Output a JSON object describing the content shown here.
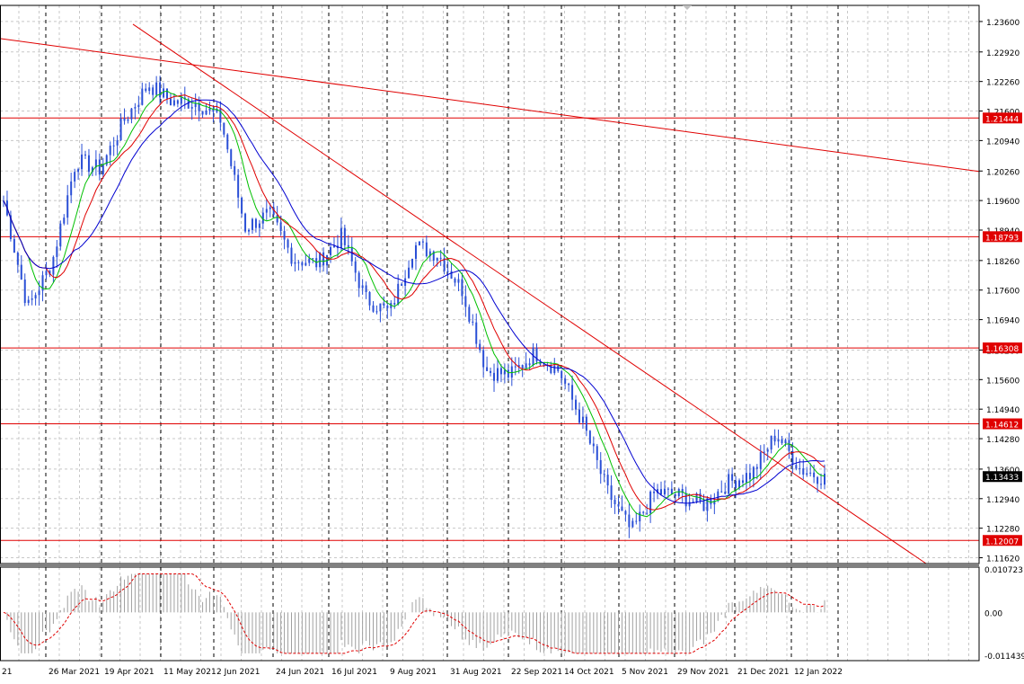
{
  "window": {
    "symbol": "EURUSD",
    "timeframe": "Daily"
  },
  "colors": {
    "background": "#ffffff",
    "grid": "#c8c8c8",
    "candle": "#2a4fd6",
    "ma_fast": "#00c000",
    "ma_mid": "#e00000",
    "ma_slow": "#0000d0",
    "level_line": "#e00000",
    "trend_line": "#e00000",
    "price_tag_bg": "#e00000",
    "current_tag_bg": "#000000",
    "osc_hist": "#a0a0a0",
    "osc_signal": "#e00000"
  },
  "chart_data": [
    {
      "type": "line",
      "name": "main-price",
      "yaxis_ticks": [
        "1.23600",
        "1.22920",
        "1.22260",
        "1.21600",
        "1.20940",
        "1.20260",
        "1.19600",
        "1.18940",
        "1.18260",
        "1.17600",
        "1.16940",
        "1.16260",
        "1.15600",
        "1.14940",
        "1.14280",
        "1.13600",
        "1.12940",
        "1.12280",
        "1.11620"
      ],
      "ylim": [
        1.1149,
        1.2396
      ],
      "xaxis_ticks": [
        "21",
        "26 Mar 2021",
        "19 Apr 2021",
        "11 May 2021",
        "2 Jun 2021",
        "24 Jun 2021",
        "16 Jul 2021",
        "9 Aug 2021",
        "31 Aug 2021",
        "22 Sep 2021",
        "14 Oct 2021",
        "5 Nov 2021",
        "29 Nov 2021",
        "21 Dec 2021",
        "12 Jan 2022"
      ],
      "levels": [
        {
          "value": 1.21444,
          "label": "1.21444"
        },
        {
          "value": 1.18793,
          "label": "1.18793"
        },
        {
          "value": 1.16308,
          "label": "1.16308"
        },
        {
          "value": 1.14612,
          "label": "1.14612"
        },
        {
          "value": 1.12007,
          "label": "1.12007"
        }
      ],
      "current_price": {
        "value": 1.13433,
        "label": "1.13433"
      },
      "trendlines": [
        {
          "from": [
            "Mar 2021",
            1.2322
          ],
          "to": [
            "Feb 2022",
            1.2025
          ]
        },
        {
          "from": [
            "Apr 2021",
            1.2354
          ],
          "to": [
            "Feb 2022",
            1.116
          ]
        }
      ],
      "close_path": [
        [
          "Mar 2021",
          1.196
        ],
        [
          "26 Mar 2021",
          1.172
        ],
        [
          "Apr 2021",
          1.182
        ],
        [
          "19 Apr 2021",
          1.205
        ],
        [
          "Late Apr 2021",
          1.203
        ],
        [
          "11 May 2021",
          1.214
        ],
        [
          "Mid May 2021",
          1.222
        ],
        [
          "Late May 2021",
          1.218
        ],
        [
          "2 Jun 2021",
          1.218
        ],
        [
          "Mid Jun 2021",
          1.214
        ],
        [
          "Jun 2021",
          1.19
        ],
        [
          "24 Jun 2021",
          1.193
        ],
        [
          "Early Jul 2021",
          1.183
        ],
        [
          "16 Jul 2021",
          1.182
        ],
        [
          "Late Jul 2021",
          1.188
        ],
        [
          "9 Aug 2021",
          1.174
        ],
        [
          "Mid Aug 2021",
          1.171
        ],
        [
          "31 Aug 2021",
          1.186
        ],
        [
          "Early Sep 2021",
          1.184
        ],
        [
          "Sep 2021",
          1.176
        ],
        [
          "22 Sep 2021",
          1.158
        ],
        [
          "Late Sep 2021",
          1.157
        ],
        [
          "14 Oct 2021",
          1.162
        ],
        [
          "Late Oct 2021",
          1.158
        ],
        [
          "5 Nov 2021",
          1.146
        ],
        [
          "Mid Nov 2021",
          1.131
        ],
        [
          "Late Nov 2021",
          1.122
        ],
        [
          "29 Nov 2021",
          1.131
        ],
        [
          "Early Dec 2021",
          1.13
        ],
        [
          "Mid Dec 2021",
          1.128
        ],
        [
          "21 Dec 2021",
          1.133
        ],
        [
          "Late Dec 2021",
          1.135
        ],
        [
          "12 Jan 2022",
          1.144
        ],
        [
          "Mid Jan 2022",
          1.136
        ],
        [
          "Late Jan 2022",
          1.134
        ]
      ],
      "moving_averages": [
        {
          "name": "fast",
          "color": "#00c000"
        },
        {
          "name": "mid",
          "color": "#e00000"
        },
        {
          "name": "slow",
          "color": "#0000d0"
        }
      ]
    },
    {
      "type": "bar",
      "name": "oscillator",
      "yaxis_ticks": [
        "0.010723",
        "0.00",
        "-0.011439"
      ],
      "ylim": [
        -0.011439,
        0.010723
      ],
      "signal_color": "#e00000"
    }
  ]
}
